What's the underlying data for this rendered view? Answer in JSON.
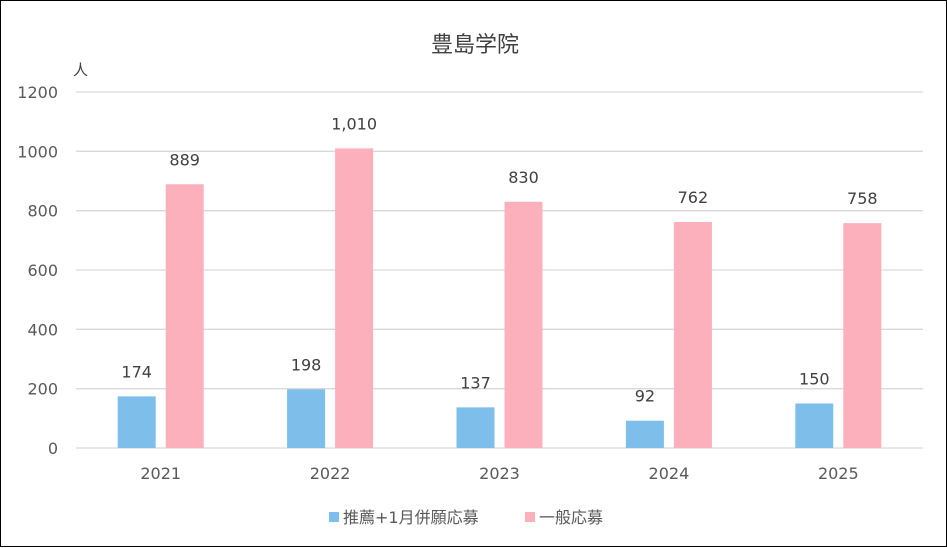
{
  "chart_data": {
    "type": "bar",
    "title": "豊島学院",
    "ylabel": "人",
    "xlabel": "",
    "categories": [
      "2021",
      "2022",
      "2023",
      "2024",
      "2025"
    ],
    "series": [
      {
        "name": "推薦+1月併願応募",
        "values": [
          174,
          198,
          137,
          92,
          150
        ],
        "labels": [
          "174",
          "198",
          "137",
          "92",
          "150"
        ],
        "color": "#7DBEEB"
      },
      {
        "name": "一般応募",
        "values": [
          889,
          1010,
          830,
          762,
          758
        ],
        "labels": [
          "889",
          "1,010",
          "830",
          "762",
          "758"
        ],
        "color": "#FBB0BB"
      }
    ],
    "ylim": [
      0,
      1200
    ],
    "yticks": [
      0,
      200,
      400,
      600,
      800,
      1000,
      1200
    ],
    "grid": true,
    "legend": "bottom"
  }
}
